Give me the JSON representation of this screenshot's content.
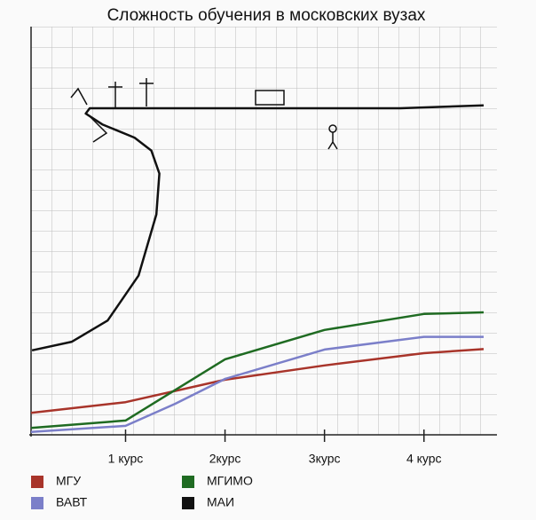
{
  "chart_data": {
    "type": "line",
    "title": "Сложность обучения в московских вузах",
    "xlim": [
      0.05,
      4.6
    ],
    "xticks": [
      {
        "value": 1,
        "label": "1 курс"
      },
      {
        "value": 2,
        "label": "2курс"
      },
      {
        "value": 3,
        "label": "3курс"
      },
      {
        "value": 4,
        "label": "4 курс"
      }
    ],
    "ylim": [
      0,
      100
    ],
    "grid": true,
    "series": [
      {
        "name": "МГУ",
        "color": "#a8342a",
        "x": [
          0.05,
          1,
          2,
          3,
          4,
          4.6
        ],
        "values": [
          5.4,
          8,
          13.5,
          17,
          20,
          21
        ]
      },
      {
        "name": "МГИМО",
        "color": "#1f6b22",
        "x": [
          0.05,
          1,
          1.5,
          2,
          3,
          4,
          4.6
        ],
        "values": [
          1.7,
          3.5,
          11,
          18.5,
          25.7,
          29.6,
          30
        ]
      },
      {
        "name": "ВАВТ",
        "color": "#7b7fc9",
        "x": [
          0.05,
          1,
          1.5,
          2,
          3,
          4,
          4.6
        ],
        "values": [
          0.7,
          2.2,
          7.6,
          13.7,
          20.9,
          24,
          24
        ]
      },
      {
        "name": "МАИ",
        "color": "#111111",
        "x": [
          0.06,
          0.46,
          0.82,
          1.13,
          1.31,
          1.34,
          1.26,
          1.09,
          0.77,
          0.6,
          0.64,
          1.53,
          2.42,
          3.22,
          3.76,
          4.6
        ],
        "values": [
          20.7,
          22.8,
          28,
          39,
          54,
          64,
          69.6,
          72.8,
          76,
          78.7,
          80,
          80,
          80,
          80,
          80,
          80.7
        ]
      }
    ]
  }
}
